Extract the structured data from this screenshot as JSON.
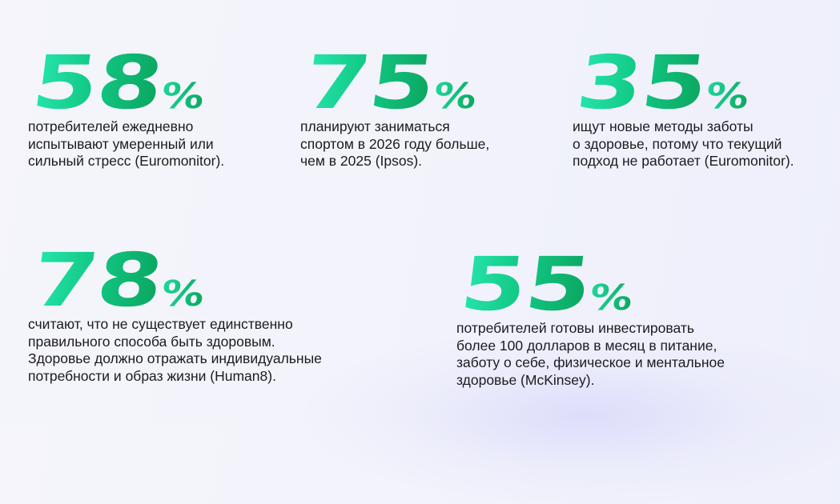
{
  "stats": [
    {
      "value": "58",
      "unit": "%",
      "lines": [
        "потребителей ежедневно",
        "испытывают умеренный или",
        "сильный стресс (Euromonitor)."
      ]
    },
    {
      "value": "75",
      "unit": "%",
      "lines": [
        "планируют заниматься",
        "спортом в 2026 году больше,",
        "чем в 2025 (Ipsos)."
      ]
    },
    {
      "value": "35",
      "unit": "%",
      "lines": [
        "ищут новые методы заботы",
        "о здоровье, потому что текущий",
        "подход не работает (Euromonitor)."
      ]
    },
    {
      "value": "78",
      "unit": "%",
      "lines": [
        "считают, что не существует единственно",
        "правильного способа быть здоровым.",
        "Здоровье должно отражать индивидуальные",
        "потребности и образ жизни (Human8)."
      ]
    },
    {
      "value": "55",
      "unit": "%",
      "lines": [
        "потребителей готовы инвестировать",
        "более 100 долларов в месяц в питание,",
        "заботу о себе, физическое и ментальное",
        "здоровье (McKinsey)."
      ]
    }
  ],
  "colors": {
    "accent_start": "#27e6ae",
    "accent_mid": "#12c985",
    "accent_end": "#0ba55f",
    "text": "#1b1b1f",
    "background": "#f3f4fb"
  }
}
